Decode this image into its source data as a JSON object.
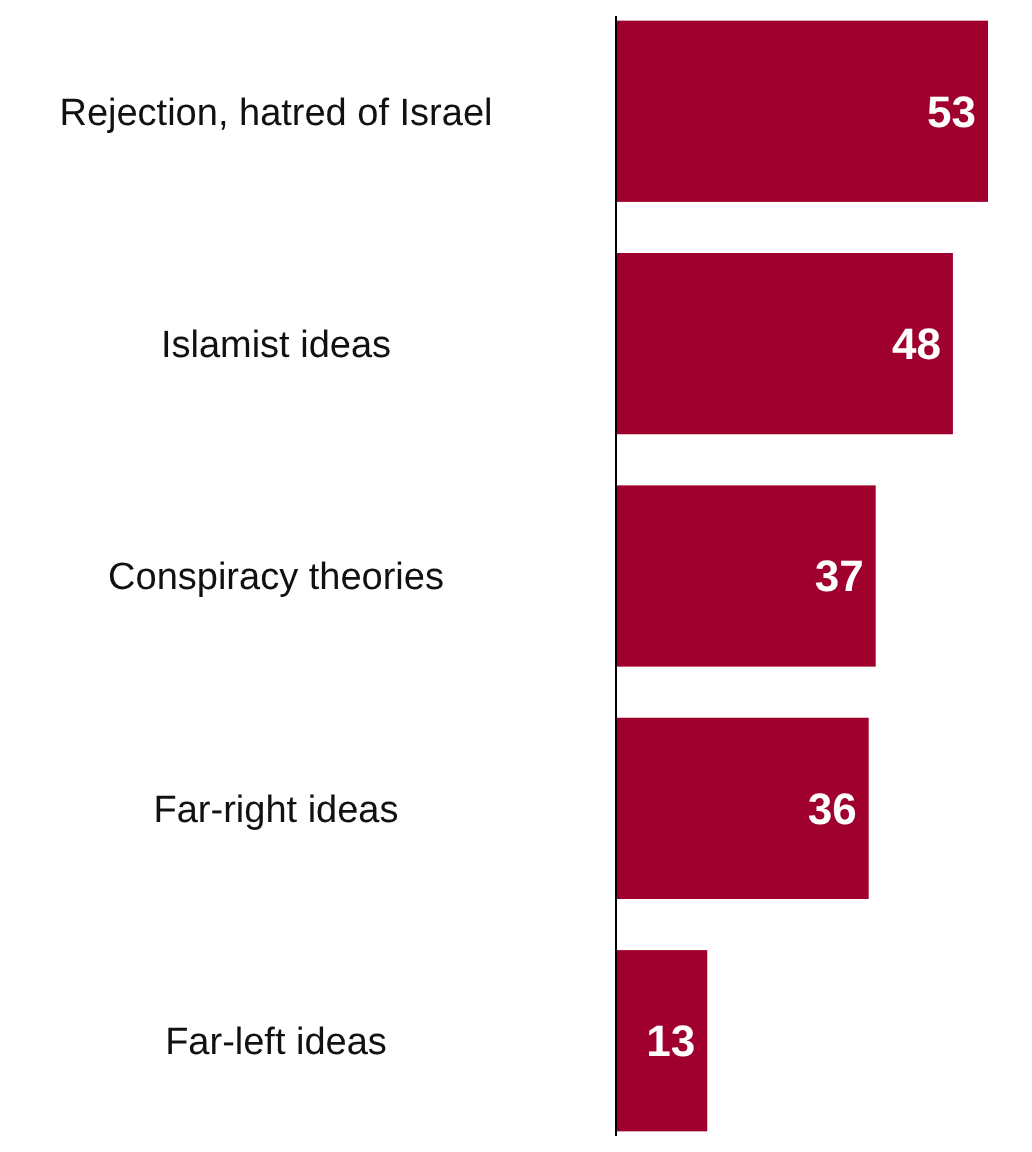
{
  "chart_data": {
    "type": "bar",
    "orientation": "horizontal",
    "categories": [
      "Rejection, hatred of Israel",
      "Islamist ideas",
      "Conspiracy theories",
      "Far-right ideas",
      "Far-left ideas"
    ],
    "values": [
      53,
      48,
      37,
      36,
      13
    ],
    "color": "#a0002e",
    "data_labels": true,
    "tick_labels": "y"
  }
}
